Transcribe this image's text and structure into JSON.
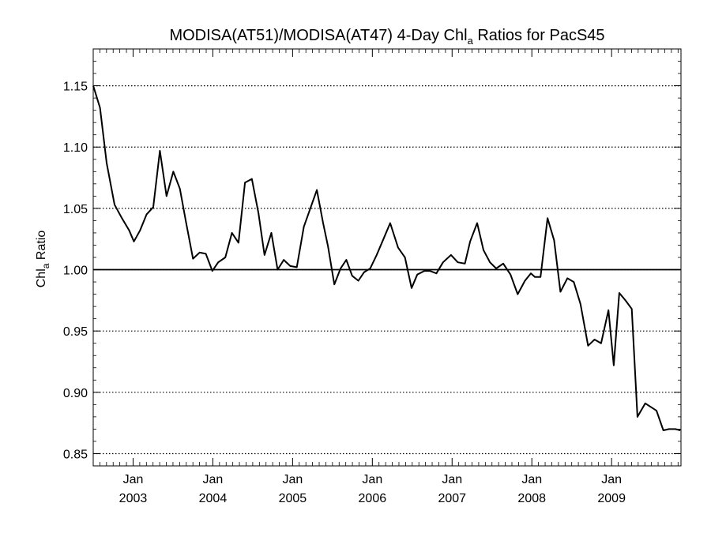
{
  "chart_data": {
    "type": "line",
    "title": "MODISA(AT51)/MODISA(AT47) 4-Day Chl",
    "title_subscript": "a",
    "title_suffix": " Ratios for PacS45",
    "ylabel": "Chl",
    "ylabel_subscript": "a",
    "ylabel_suffix": " Ratio",
    "xlabel": "",
    "x_unit": "year (decimal)",
    "xlim": [
      2002.5,
      2009.87
    ],
    "ylim": [
      0.84,
      1.18
    ],
    "grid": "horizontal dotted",
    "y_ticks": [
      {
        "value": 0.85,
        "label": "0.85"
      },
      {
        "value": 0.9,
        "label": "0.90"
      },
      {
        "value": 0.95,
        "label": "0.95"
      },
      {
        "value": 1.0,
        "label": "1.00"
      },
      {
        "value": 1.05,
        "label": "1.05"
      },
      {
        "value": 1.1,
        "label": "1.10"
      },
      {
        "value": 1.15,
        "label": "1.15"
      }
    ],
    "x_ticks": [
      {
        "value": 2003.0,
        "month": "Jan",
        "year": "2003"
      },
      {
        "value": 2004.0,
        "month": "Jan",
        "year": "2004"
      },
      {
        "value": 2005.0,
        "month": "Jan",
        "year": "2005"
      },
      {
        "value": 2006.0,
        "month": "Jan",
        "year": "2006"
      },
      {
        "value": 2007.0,
        "month": "Jan",
        "year": "2007"
      },
      {
        "value": 2008.0,
        "month": "Jan",
        "year": "2008"
      },
      {
        "value": 2009.0,
        "month": "Jan",
        "year": "2009"
      }
    ],
    "reference_line": 1.0,
    "series": [
      {
        "x": [
          2002.5,
          2002.585,
          2002.668,
          2002.767,
          2002.86,
          2002.951,
          2003.01,
          2003.087,
          2003.169,
          2003.253,
          2003.336,
          2003.419,
          2003.504,
          2003.587,
          2003.663,
          2003.751,
          2003.834,
          2003.912,
          2003.994,
          2004.067,
          2004.156,
          2004.239,
          2004.322,
          2004.403,
          2004.489,
          2004.572,
          2004.648,
          2004.734,
          2004.812,
          2004.889,
          2004.971,
          2005.053,
          2005.141,
          2005.228,
          2005.304,
          2005.383,
          2005.444,
          2005.523,
          2005.602,
          2005.674,
          2005.747,
          2005.824,
          2005.898,
          2005.973,
          2006.054,
          2006.139,
          2006.224,
          2006.323,
          2006.409,
          2006.492,
          2006.563,
          2006.652,
          2006.721,
          2006.803,
          2006.886,
          2006.986,
          2007.072,
          2007.161,
          2007.226,
          2007.314,
          2007.394,
          2007.475,
          2007.553,
          2007.641,
          2007.732,
          2007.822,
          2007.914,
          2007.988,
          2008.038,
          2008.109,
          2008.197,
          2008.279,
          2008.358,
          2008.446,
          2008.526,
          2008.61,
          2008.705,
          2008.786,
          2008.869,
          2008.961,
          2009.027,
          2009.096,
          2009.174,
          2009.253,
          2009.324,
          2009.422,
          2009.563,
          2009.649,
          2009.719,
          2009.8,
          2009.862
        ],
        "values": [
          1.15,
          1.132,
          1.087,
          1.053,
          1.042,
          1.032,
          1.023,
          1.032,
          1.045,
          1.051,
          1.097,
          1.06,
          1.08,
          1.066,
          1.039,
          1.009,
          1.014,
          1.013,
          0.999,
          1.006,
          1.01,
          1.03,
          1.022,
          1.071,
          1.074,
          1.046,
          1.012,
          1.03,
          1.0,
          1.008,
          1.003,
          1.002,
          1.035,
          1.051,
          1.065,
          1.038,
          1.019,
          0.988,
          1.001,
          1.008,
          0.995,
          0.991,
          0.998,
          1.001,
          1.012,
          1.025,
          1.038,
          1.018,
          1.01,
          0.985,
          0.996,
          0.999,
          0.999,
          0.997,
          1.006,
          1.012,
          1.006,
          1.005,
          1.023,
          1.038,
          1.016,
          1.006,
          1.001,
          1.005,
          0.996,
          0.98,
          0.991,
          0.997,
          0.994,
          0.994,
          1.042,
          1.024,
          0.982,
          0.993,
          0.99,
          0.972,
          0.938,
          0.943,
          0.94,
          0.967,
          0.922,
          0.981,
          0.975,
          0.968,
          0.88,
          0.891,
          0.885,
          0.869,
          0.87,
          0.87,
          0.869
        ]
      }
    ]
  }
}
